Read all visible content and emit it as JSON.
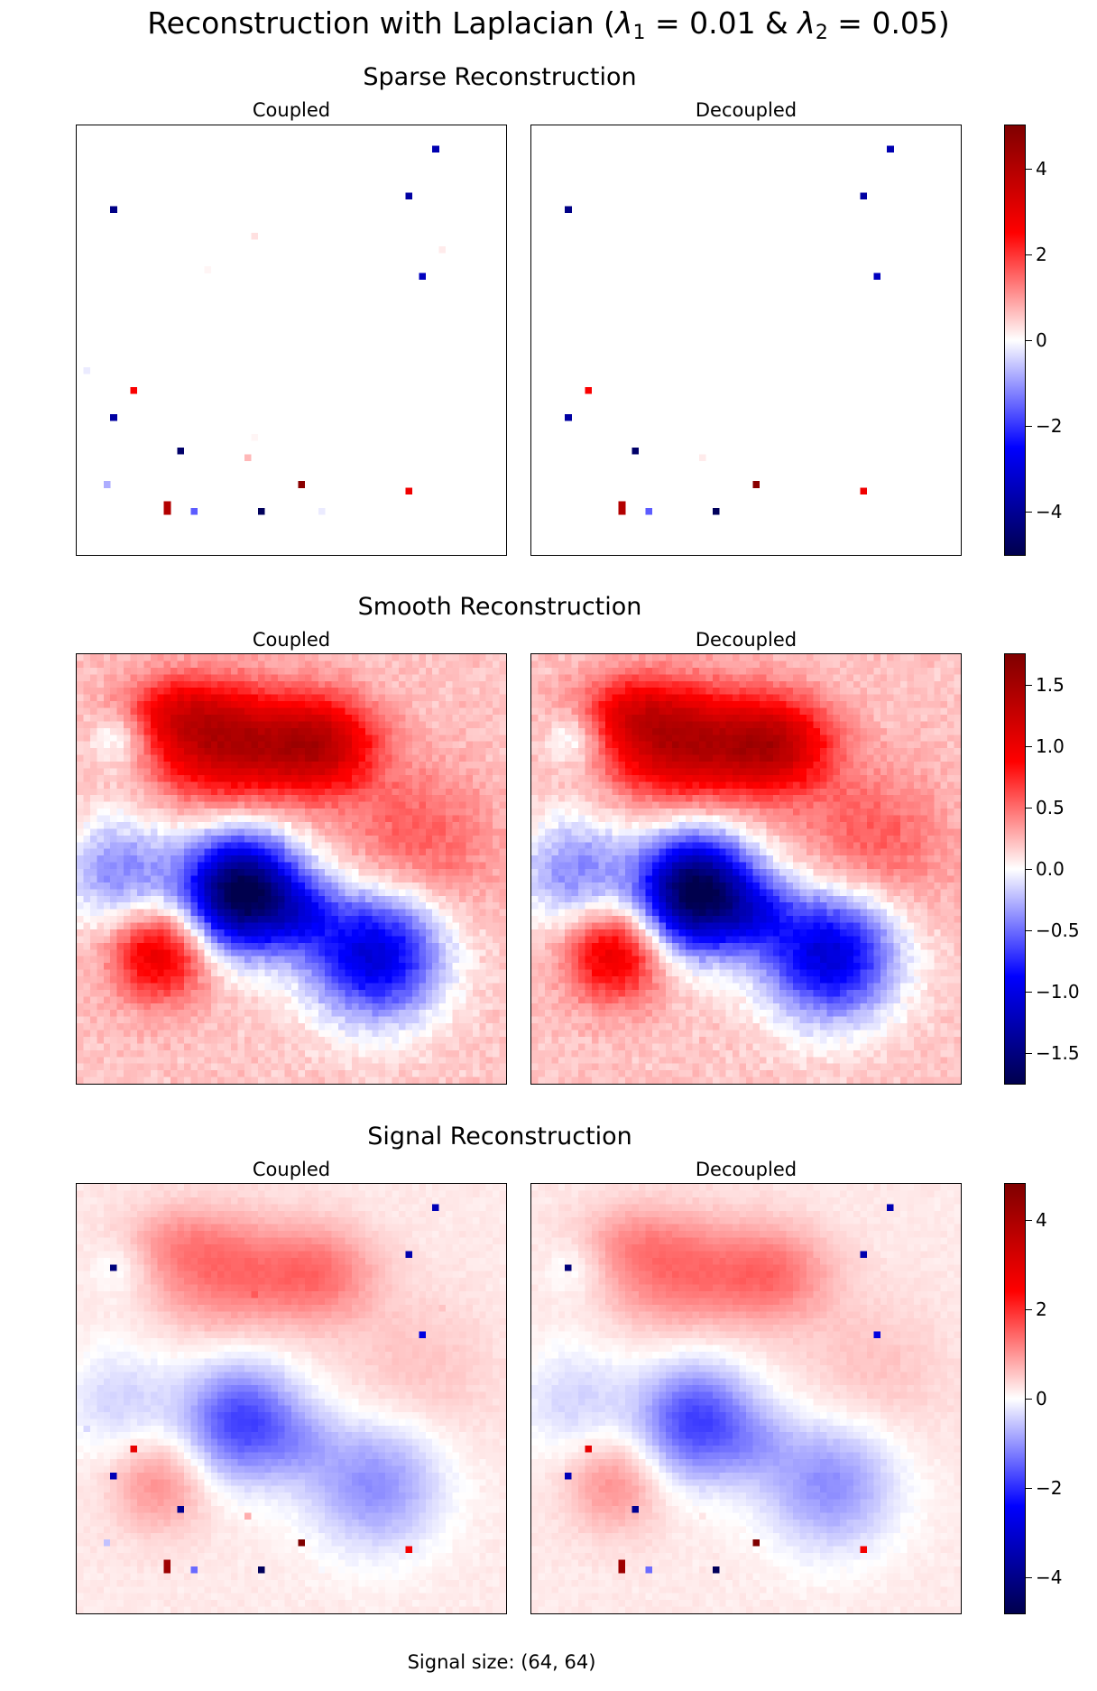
{
  "title_prefix": "Reconstruction with Laplacian (",
  "title_lambda1": "λ",
  "title_sub1": "1",
  "title_mid": " = 0.01 & ",
  "title_lambda2": "λ",
  "title_sub2": "2",
  "title_suffix": " = 0.05)",
  "footer": "Signal size: (64, 64)",
  "colormap": {
    "name": "seismic",
    "dark_blue": "#00004d",
    "blue": "#0000ff",
    "white": "#ffffff",
    "red": "#ff0000",
    "dark_red": "#800000"
  },
  "chart_data": [
    {
      "type": "heatmap",
      "title": "Sparse Reconstruction",
      "panels": [
        {
          "title": "Coupled"
        },
        {
          "title": "Decoupled"
        }
      ],
      "grid_size": [
        64,
        64
      ],
      "clim": [
        -5,
        5
      ],
      "colorbar_ticks": [
        4,
        2,
        0,
        -2,
        -4
      ],
      "colorbar_tick_labels": [
        "4",
        "2",
        "0",
        "−2",
        "−4"
      ],
      "spikes": [
        {
          "x": 53,
          "y": 3,
          "value": -3.6
        },
        {
          "x": 49,
          "y": 10,
          "value": -3.8
        },
        {
          "x": 5,
          "y": 12,
          "value": -4.2
        },
        {
          "x": 51,
          "y": 22,
          "value": -3.4
        },
        {
          "x": 8,
          "y": 39,
          "value": 2.6
        },
        {
          "x": 5,
          "y": 43,
          "value": -3.8
        },
        {
          "x": 15,
          "y": 48,
          "value": -4.6
        },
        {
          "x": 33,
          "y": 53,
          "value": 4.8
        },
        {
          "x": 49,
          "y": 54,
          "value": 2.8
        },
        {
          "x": 13,
          "y": 56,
          "value": 4.0
        },
        {
          "x": 13,
          "y": 57,
          "value": 4.0
        },
        {
          "x": 17,
          "y": 57,
          "value": -1.6
        },
        {
          "x": 27,
          "y": 57,
          "value": -4.8
        }
      ],
      "coupled_only_spikes": [
        {
          "x": 26,
          "y": 16,
          "value": 0.3
        },
        {
          "x": 54,
          "y": 18,
          "value": 0.2
        },
        {
          "x": 19,
          "y": 21,
          "value": 0.1
        },
        {
          "x": 1,
          "y": 36,
          "value": -0.2
        },
        {
          "x": 26,
          "y": 46,
          "value": 0.1
        },
        {
          "x": 25,
          "y": 49,
          "value": 0.7
        },
        {
          "x": 4,
          "y": 53,
          "value": -0.8
        },
        {
          "x": 36,
          "y": 57,
          "value": -0.2
        }
      ],
      "decoupled_only_spikes": [
        {
          "x": 25,
          "y": 49,
          "value": 0.2
        }
      ]
    },
    {
      "type": "heatmap",
      "title": "Smooth Reconstruction",
      "panels": [
        {
          "title": "Coupled"
        },
        {
          "title": "Decoupled"
        }
      ],
      "grid_size": [
        64,
        64
      ],
      "clim": [
        -1.75,
        1.75
      ],
      "colorbar_ticks": [
        1.5,
        1.0,
        0.5,
        0.0,
        -0.5,
        -1.0,
        -1.5
      ],
      "colorbar_tick_labels": [
        "1.5",
        "1.0",
        "0.5",
        "0.0",
        "−0.5",
        "−1.0",
        "−1.5"
      ],
      "baseline": 0.2,
      "blobs": [
        {
          "x": 22,
          "y": 13,
          "amplitude": 1.1,
          "sx": 8,
          "sy": 6
        },
        {
          "x": 36,
          "y": 13,
          "amplitude": 1.0,
          "sx": 6,
          "sy": 5
        },
        {
          "x": 14,
          "y": 8,
          "amplitude": 0.5,
          "sx": 6,
          "sy": 4
        },
        {
          "x": 50,
          "y": 28,
          "amplitude": 0.4,
          "sx": 8,
          "sy": 8
        },
        {
          "x": 12,
          "y": 44,
          "amplitude": 0.9,
          "sx": 5,
          "sy": 5
        },
        {
          "x": 24,
          "y": 35,
          "amplitude": -2.0,
          "sx": 6,
          "sy": 6
        },
        {
          "x": 44,
          "y": 44,
          "amplitude": -1.3,
          "sx": 7,
          "sy": 7
        },
        {
          "x": 6,
          "y": 32,
          "amplitude": -0.6,
          "sx": 6,
          "sy": 6
        },
        {
          "x": 33,
          "y": 38,
          "amplitude": -0.5,
          "sx": 4,
          "sy": 4
        },
        {
          "x": 6,
          "y": 12,
          "amplitude": -0.4,
          "sx": 3,
          "sy": 3
        }
      ]
    },
    {
      "type": "heatmap",
      "title": "Signal Reconstruction",
      "panels": [
        {
          "title": "Coupled"
        },
        {
          "title": "Decoupled"
        }
      ],
      "grid_size": [
        64,
        64
      ],
      "clim": [
        -4.8,
        4.8
      ],
      "colorbar_ticks": [
        4,
        2,
        0,
        -2,
        -4
      ],
      "colorbar_tick_labels": [
        "4",
        "2",
        "0",
        "−2",
        "−4"
      ],
      "composition": "smooth + sparse"
    }
  ]
}
